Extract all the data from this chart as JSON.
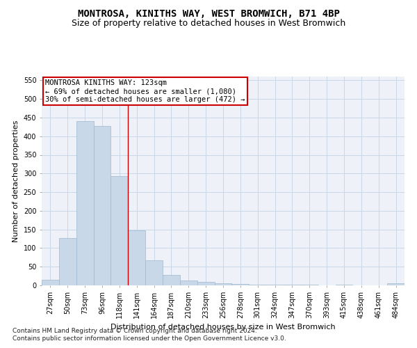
{
  "title": "MONTROSA, KINITHS WAY, WEST BROMWICH, B71 4BP",
  "subtitle": "Size of property relative to detached houses in West Bromwich",
  "xlabel": "Distribution of detached houses by size in West Bromwich",
  "ylabel": "Number of detached properties",
  "footer_line1": "Contains HM Land Registry data © Crown copyright and database right 2024.",
  "footer_line2": "Contains public sector information licensed under the Open Government Licence v3.0.",
  "bar_labels": [
    "27sqm",
    "50sqm",
    "73sqm",
    "96sqm",
    "118sqm",
    "141sqm",
    "164sqm",
    "187sqm",
    "210sqm",
    "233sqm",
    "256sqm",
    "278sqm",
    "301sqm",
    "324sqm",
    "347sqm",
    "370sqm",
    "393sqm",
    "415sqm",
    "438sqm",
    "461sqm",
    "484sqm"
  ],
  "bar_values": [
    15,
    127,
    440,
    427,
    293,
    147,
    68,
    28,
    13,
    10,
    6,
    3,
    2,
    1,
    1,
    1,
    0,
    1,
    0,
    0,
    5
  ],
  "bar_color": "#c8d8e8",
  "bar_edge_color": "#a0b8d0",
  "grid_color": "#c8d8e8",
  "annotation_text": "MONTROSA KINITHS WAY: 123sqm\n← 69% of detached houses are smaller (1,080)\n30% of semi-detached houses are larger (472) →",
  "annotation_box_color": "#ffffff",
  "annotation_box_edge_color": "#cc0000",
  "vline_color": "#cc0000",
  "ylim": [
    0,
    560
  ],
  "yticks": [
    0,
    50,
    100,
    150,
    200,
    250,
    300,
    350,
    400,
    450,
    500,
    550
  ],
  "title_fontsize": 10,
  "subtitle_fontsize": 9,
  "label_fontsize": 8,
  "tick_fontsize": 7,
  "annotation_fontsize": 7.5,
  "footer_fontsize": 6.5,
  "background_color": "#ffffff",
  "axes_background": "#eef2f8"
}
